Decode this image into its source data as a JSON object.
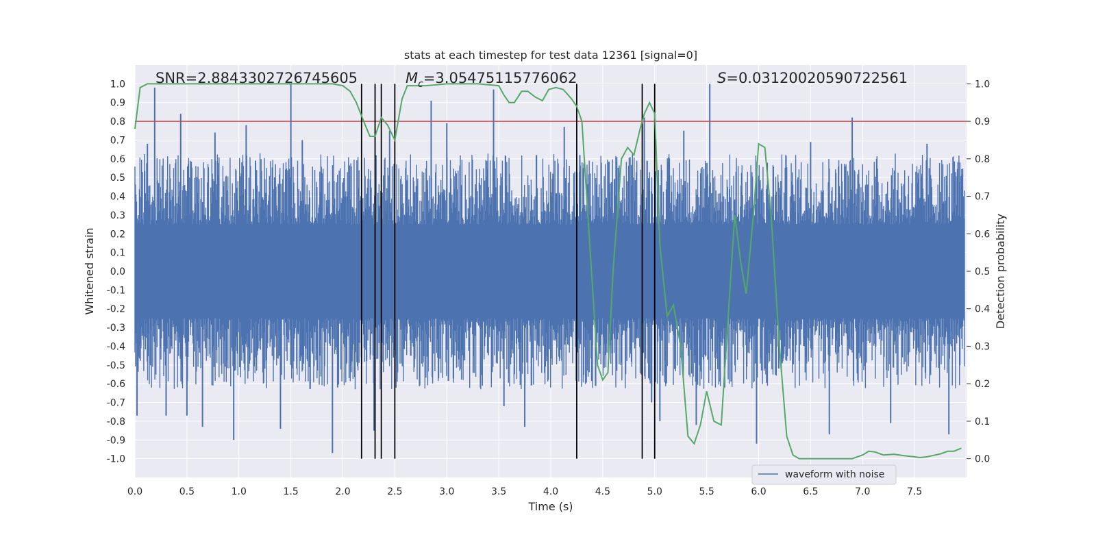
{
  "chart_data": {
    "type": "line",
    "title": "stats at each timestep for test data 12361 [signal=0]",
    "xlabel": "Time (s)",
    "ylabel_left": "Whitened strain",
    "ylabel_right": "Detection probability",
    "xlim": [
      0.0,
      8.0
    ],
    "ylim_left": [
      -1.1,
      1.1
    ],
    "ylim_right": [
      -0.05,
      1.05
    ],
    "xticks": [
      "0.0",
      "0.5",
      "1.0",
      "1.5",
      "2.0",
      "2.5",
      "3.0",
      "3.5",
      "4.0",
      "4.5",
      "5.0",
      "5.5",
      "6.0",
      "6.5",
      "7.0",
      "7.5"
    ],
    "yticks_left": [
      "1.0",
      "0.9",
      "0.8",
      "0.7",
      "0.6",
      "0.5",
      "0.4",
      "0.3",
      "0.2",
      "0.1",
      "0.0",
      "-0.1",
      "-0.2",
      "-0.3",
      "-0.4",
      "-0.5",
      "-0.6",
      "-0.7",
      "-0.8",
      "-0.9",
      "-1.0"
    ],
    "yticks_right": [
      "1.0",
      "0.9",
      "0.8",
      "0.7",
      "0.6",
      "0.5",
      "0.4",
      "0.3",
      "0.2",
      "0.1",
      "0.0"
    ],
    "annotations": {
      "snr": "SNR=2.8843302726745605",
      "mc_symbol": "M",
      "mc_sub": "c",
      "mc_value": "=3.05475115776062",
      "s_symbol": "S",
      "s_value": "=0.03120020590722561"
    },
    "threshold": {
      "value": 0.8,
      "axis": "left",
      "color": "#c44e52"
    },
    "vertical_lines": [
      2.18,
      2.31,
      2.37,
      2.5,
      4.25,
      4.88,
      5.0
    ],
    "legend": {
      "label": "waveform with noise",
      "position": "lower-right"
    },
    "series": [
      {
        "name": "waveform with noise",
        "axis": "left",
        "color": "#4c72b0",
        "description_values": "noise envelope amplitude ~ +/-0.45 with spikes up to +/-1.0",
        "spikes": [
          [
            0.02,
            -0.77
          ],
          [
            0.07,
            0.53
          ],
          [
            0.12,
            0.68
          ],
          [
            0.19,
            0.98
          ],
          [
            0.3,
            -0.77
          ],
          [
            0.44,
            0.84
          ],
          [
            0.5,
            -0.77
          ],
          [
            0.65,
            -0.83
          ],
          [
            0.77,
            0.74
          ],
          [
            0.95,
            -0.9
          ],
          [
            1.07,
            0.78
          ],
          [
            1.16,
            0.59
          ],
          [
            1.4,
            -0.84
          ],
          [
            1.5,
            1.0
          ],
          [
            1.61,
            0.7
          ],
          [
            1.9,
            -0.97
          ],
          [
            1.95,
            -0.62
          ],
          [
            2.3,
            -0.85
          ],
          [
            2.45,
            0.75
          ],
          [
            2.85,
            0.91
          ],
          [
            3.0,
            0.79
          ],
          [
            3.45,
            0.97
          ],
          [
            3.55,
            -0.72
          ],
          [
            3.75,
            -0.83
          ],
          [
            4.13,
            0.77
          ],
          [
            4.28,
            0.62
          ],
          [
            4.9,
            0.82
          ],
          [
            4.97,
            -0.7
          ],
          [
            5.05,
            -0.8
          ],
          [
            5.28,
            0.75
          ],
          [
            5.4,
            -0.82
          ],
          [
            5.53,
            1.0
          ],
          [
            5.98,
            -0.92
          ],
          [
            6.5,
            0.69
          ],
          [
            6.68,
            -0.87
          ],
          [
            6.9,
            0.82
          ],
          [
            7.27,
            -0.81
          ],
          [
            7.62,
            0.68
          ],
          [
            7.83,
            -0.87
          ]
        ]
      },
      {
        "name": "detection probability",
        "axis": "right",
        "color": "#55a868",
        "x": [
          0.0,
          0.05,
          0.12,
          0.3,
          0.6,
          1.0,
          1.5,
          1.9,
          2.0,
          2.07,
          2.13,
          2.2,
          2.26,
          2.31,
          2.37,
          2.43,
          2.5,
          2.57,
          2.62,
          2.8,
          3.0,
          3.3,
          3.5,
          3.55,
          3.6,
          3.65,
          3.72,
          3.78,
          3.85,
          3.92,
          3.98,
          4.05,
          4.12,
          4.2,
          4.25,
          4.3,
          4.38,
          4.45,
          4.5,
          4.55,
          4.6,
          4.68,
          4.74,
          4.8,
          4.86,
          4.9,
          4.95,
          5.0,
          5.05,
          5.12,
          5.18,
          5.25,
          5.32,
          5.38,
          5.44,
          5.5,
          5.57,
          5.64,
          5.7,
          5.77,
          5.83,
          5.88,
          5.95,
          6.0,
          6.06,
          6.12,
          6.2,
          6.27,
          6.33,
          6.39,
          6.46,
          6.55,
          6.7,
          6.9,
          7.0,
          7.06,
          7.12,
          7.2,
          7.3,
          7.4,
          7.5,
          7.55,
          7.62,
          7.7,
          7.75,
          7.82,
          7.88,
          7.95
        ],
        "values": [
          0.88,
          0.99,
          1.0,
          1.0,
          1.0,
          1.0,
          1.0,
          1.0,
          0.995,
          0.98,
          0.95,
          0.9,
          0.86,
          0.86,
          0.91,
          0.89,
          0.85,
          0.96,
          0.995,
          0.995,
          1.0,
          1.0,
          0.995,
          0.97,
          0.95,
          0.95,
          0.98,
          0.98,
          0.965,
          0.955,
          0.985,
          0.99,
          0.985,
          0.96,
          0.94,
          0.9,
          0.55,
          0.25,
          0.21,
          0.23,
          0.5,
          0.8,
          0.83,
          0.81,
          0.88,
          0.92,
          0.95,
          0.92,
          0.57,
          0.38,
          0.41,
          0.3,
          0.06,
          0.04,
          0.09,
          0.18,
          0.1,
          0.09,
          0.35,
          0.65,
          0.52,
          0.44,
          0.65,
          0.84,
          0.83,
          0.65,
          0.3,
          0.06,
          0.01,
          0.0,
          0.0,
          0.0,
          0.0,
          0.0,
          0.01,
          0.02,
          0.018,
          0.01,
          0.012,
          0.008,
          0.005,
          0.003,
          0.005,
          0.01,
          0.013,
          0.02,
          0.02,
          0.028
        ]
      }
    ]
  }
}
